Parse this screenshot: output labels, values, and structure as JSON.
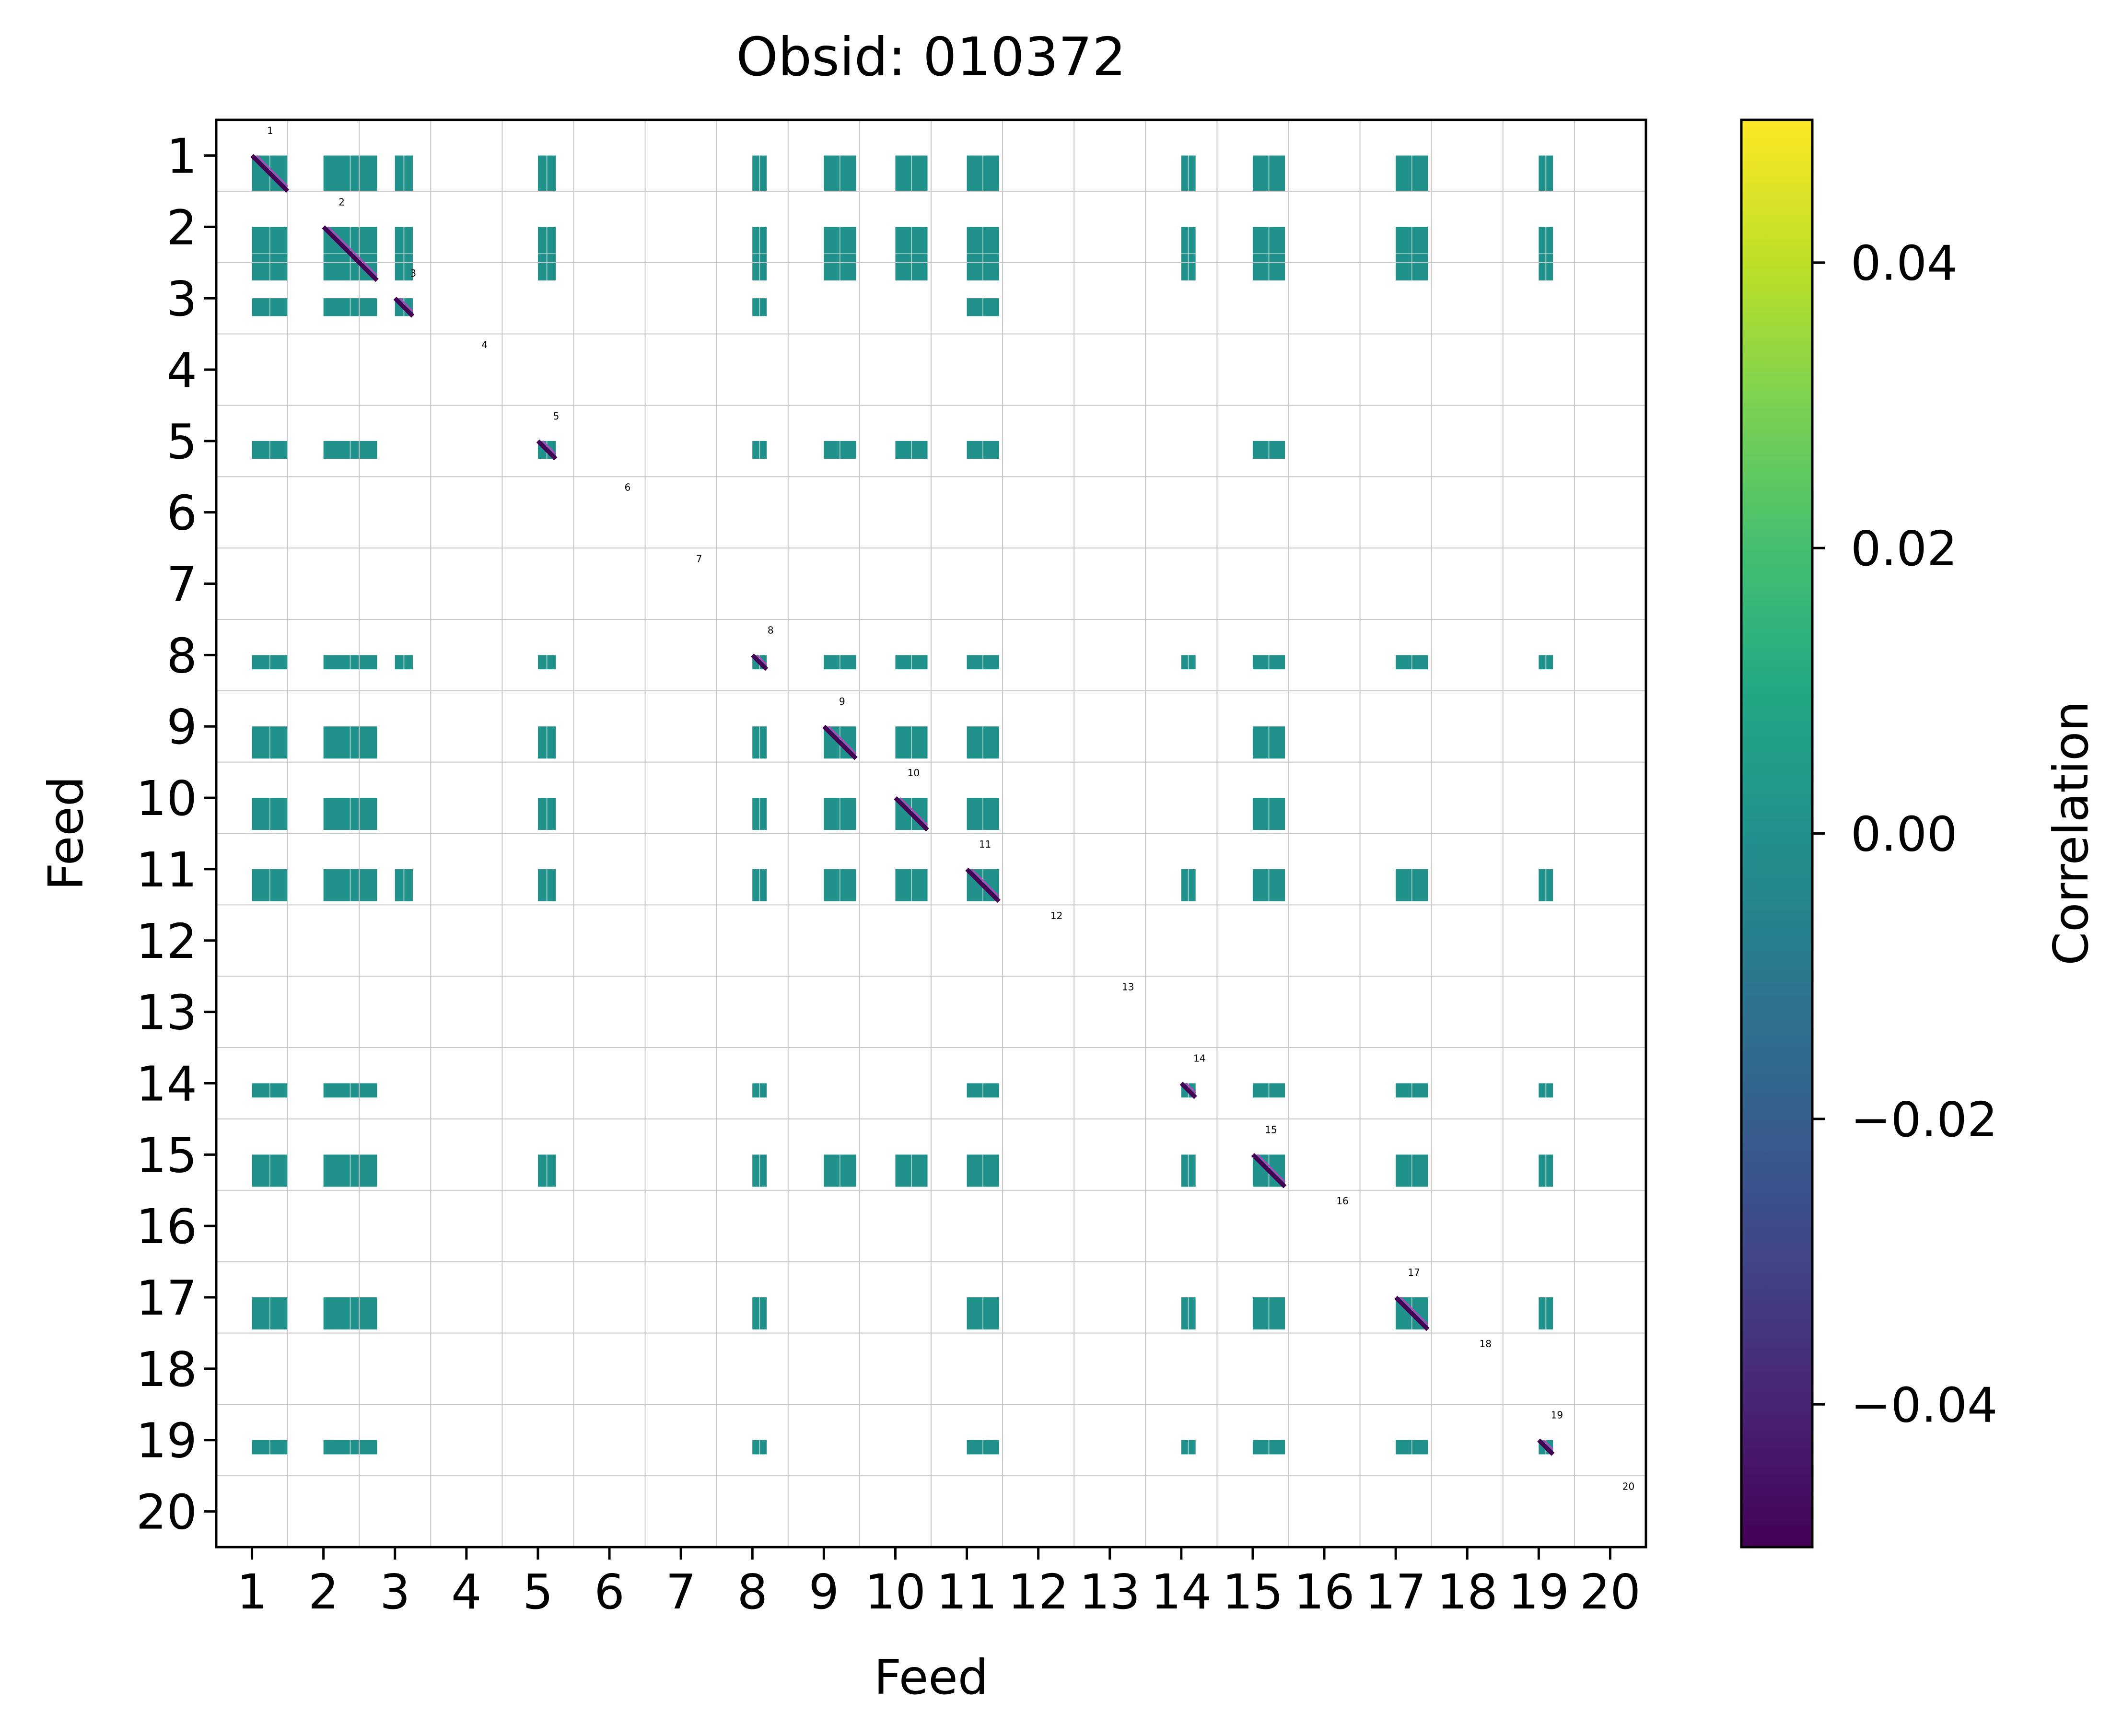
{
  "chart_data": {
    "type": "heatmap",
    "title": "Obsid: 010372",
    "xlabel": "Feed",
    "ylabel": "Feed",
    "feeds": [
      "1",
      "2",
      "3",
      "4",
      "5",
      "6",
      "7",
      "8",
      "9",
      "10",
      "11",
      "12",
      "13",
      "14",
      "15",
      "16",
      "17",
      "18",
      "19",
      "20"
    ],
    "x_tick_labels": [
      "1",
      "2",
      "3",
      "4",
      "5",
      "6",
      "7",
      "8",
      "9",
      "10",
      "11",
      "12",
      "13",
      "14",
      "15",
      "16",
      "17",
      "18",
      "19",
      "20"
    ],
    "y_tick_labels": [
      "1",
      "2",
      "3",
      "4",
      "5",
      "6",
      "7",
      "8",
      "9",
      "10",
      "11",
      "12",
      "13",
      "14",
      "15",
      "16",
      "17",
      "18",
      "19",
      "20"
    ],
    "diagonal_labels": [
      "1",
      "2",
      "3",
      "4",
      "5",
      "6",
      "7",
      "8",
      "9",
      "10",
      "11",
      "12",
      "13",
      "14",
      "15",
      "16",
      "17",
      "18",
      "19",
      "20"
    ],
    "colorbar": {
      "label": "Correlation",
      "range": [
        -0.05,
        0.05
      ],
      "ticks": [
        -0.04,
        -0.02,
        0.0,
        0.02,
        0.04
      ],
      "tick_labels": [
        "−0.04",
        "−0.02",
        "0.00",
        "0.02",
        "0.04"
      ],
      "colormap": "viridis"
    },
    "grid": true,
    "block_extent_in_feed": {
      "1": [
        0.0,
        0.5
      ],
      "2": [
        0.0,
        0.75
      ],
      "3": [
        0.0,
        0.25
      ],
      "5": [
        0.0,
        0.25
      ],
      "8": [
        0.0,
        0.2
      ],
      "9": [
        0.0,
        0.45
      ],
      "10": [
        0.0,
        0.45
      ],
      "11": [
        0.0,
        0.45
      ],
      "14": [
        0.0,
        0.2
      ],
      "15": [
        0.0,
        0.45
      ],
      "17": [
        0.0,
        0.45
      ],
      "19": [
        0.0,
        0.2
      ]
    },
    "nonzero_blocks": [
      [
        1,
        1
      ],
      [
        1,
        2
      ],
      [
        1,
        3
      ],
      [
        1,
        5
      ],
      [
        1,
        8
      ],
      [
        1,
        9
      ],
      [
        1,
        10
      ],
      [
        1,
        11
      ],
      [
        1,
        14
      ],
      [
        1,
        15
      ],
      [
        1,
        17
      ],
      [
        1,
        19
      ],
      [
        2,
        1
      ],
      [
        2,
        2
      ],
      [
        2,
        3
      ],
      [
        2,
        5
      ],
      [
        2,
        8
      ],
      [
        2,
        9
      ],
      [
        2,
        10
      ],
      [
        2,
        11
      ],
      [
        2,
        14
      ],
      [
        2,
        15
      ],
      [
        2,
        17
      ],
      [
        2,
        19
      ],
      [
        3,
        1
      ],
      [
        3,
        2
      ],
      [
        3,
        3
      ],
      [
        3,
        8
      ],
      [
        3,
        11
      ],
      [
        5,
        1
      ],
      [
        5,
        2
      ],
      [
        5,
        5
      ],
      [
        5,
        8
      ],
      [
        5,
        9
      ],
      [
        5,
        10
      ],
      [
        5,
        11
      ],
      [
        5,
        15
      ],
      [
        8,
        1
      ],
      [
        8,
        2
      ],
      [
        8,
        3
      ],
      [
        8,
        5
      ],
      [
        8,
        8
      ],
      [
        8,
        9
      ],
      [
        8,
        10
      ],
      [
        8,
        11
      ],
      [
        8,
        14
      ],
      [
        8,
        15
      ],
      [
        8,
        17
      ],
      [
        8,
        19
      ],
      [
        9,
        1
      ],
      [
        9,
        2
      ],
      [
        9,
        5
      ],
      [
        9,
        8
      ],
      [
        9,
        9
      ],
      [
        9,
        10
      ],
      [
        9,
        11
      ],
      [
        9,
        15
      ],
      [
        10,
        1
      ],
      [
        10,
        2
      ],
      [
        10,
        5
      ],
      [
        10,
        8
      ],
      [
        10,
        9
      ],
      [
        10,
        10
      ],
      [
        10,
        11
      ],
      [
        10,
        15
      ],
      [
        11,
        1
      ],
      [
        11,
        2
      ],
      [
        11,
        3
      ],
      [
        11,
        5
      ],
      [
        11,
        8
      ],
      [
        11,
        9
      ],
      [
        11,
        10
      ],
      [
        11,
        11
      ],
      [
        11,
        14
      ],
      [
        11,
        15
      ],
      [
        11,
        17
      ],
      [
        11,
        19
      ],
      [
        14,
        1
      ],
      [
        14,
        2
      ],
      [
        14,
        8
      ],
      [
        14,
        11
      ],
      [
        14,
        14
      ],
      [
        14,
        15
      ],
      [
        14,
        17
      ],
      [
        14,
        19
      ],
      [
        15,
        1
      ],
      [
        15,
        2
      ],
      [
        15,
        5
      ],
      [
        15,
        8
      ],
      [
        15,
        9
      ],
      [
        15,
        10
      ],
      [
        15,
        11
      ],
      [
        15,
        14
      ],
      [
        15,
        15
      ],
      [
        15,
        17
      ],
      [
        15,
        19
      ],
      [
        17,
        1
      ],
      [
        17,
        2
      ],
      [
        17,
        8
      ],
      [
        17,
        11
      ],
      [
        17,
        14
      ],
      [
        17,
        15
      ],
      [
        17,
        17
      ],
      [
        17,
        19
      ],
      [
        19,
        1
      ],
      [
        19,
        2
      ],
      [
        19,
        8
      ],
      [
        19,
        11
      ],
      [
        19,
        14
      ],
      [
        19,
        15
      ],
      [
        19,
        17
      ],
      [
        19,
        19
      ]
    ],
    "off_diagonal_value": 0.0,
    "diagonal_value": -0.05,
    "colors": {
      "block_fill": "#21918c",
      "block_stripe": "#e8f2f1",
      "diagonal_line": "#440154",
      "diagonal_accent": "#c23fc0",
      "grid": "#c8c8c8",
      "axes": "#000000"
    }
  }
}
